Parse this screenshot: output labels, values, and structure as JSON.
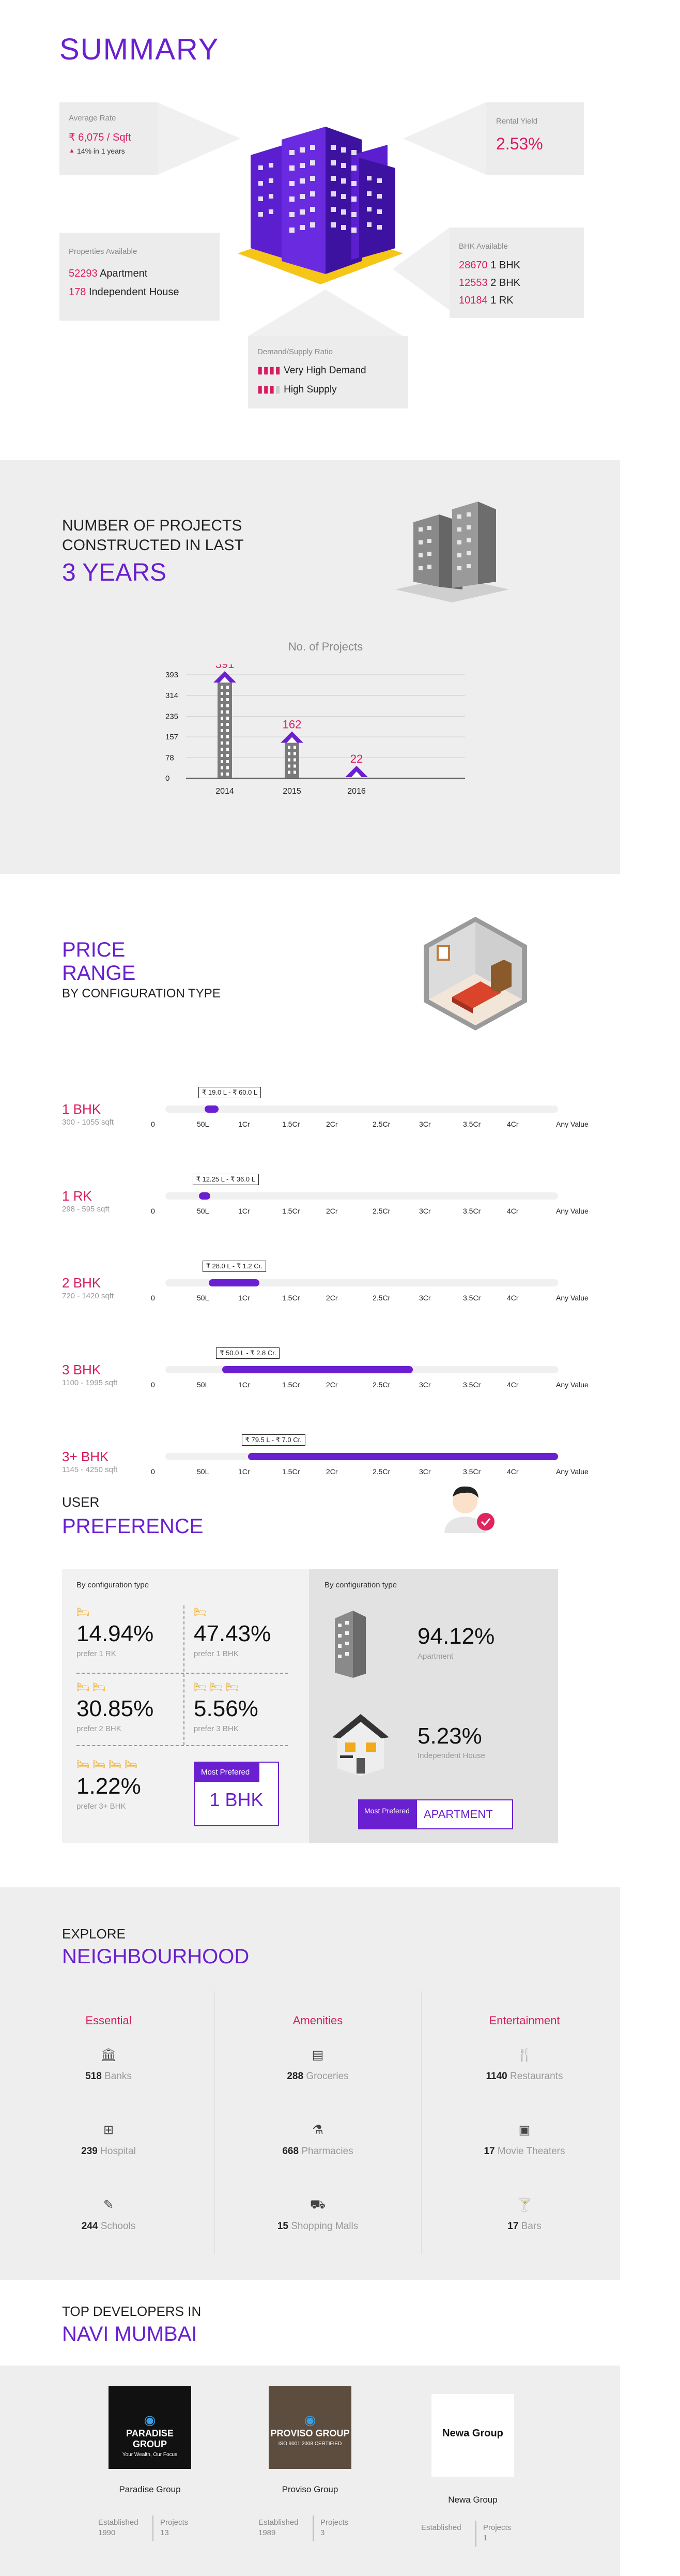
{
  "summary": {
    "title": "SUMMARY",
    "average_rate": {
      "label": "Average Rate",
      "value": "₹ 6,075 / Sqft",
      "change": "14% in 1 years"
    },
    "rental_yield": {
      "label": "Rental Yield",
      "value": "2.53%"
    },
    "properties": {
      "label": "Properties Available",
      "items": [
        {
          "count": "52293",
          "type": "Apartment"
        },
        {
          "count": "178",
          "type": "Independent House"
        }
      ]
    },
    "bhk": {
      "label": "BHK Available",
      "items": [
        {
          "count": "28670",
          "type": "1 BHK"
        },
        {
          "count": "12553",
          "type": "2 BHK"
        },
        {
          "count": "10184",
          "type": "1 RK"
        }
      ]
    },
    "demand": {
      "label": "Demand/Supply Ratio",
      "items": [
        "Very High Demand",
        "High Supply"
      ]
    }
  },
  "projects": {
    "line1": "NUMBER OF PROJECTS",
    "line2": "CONSTRUCTED IN LAST",
    "highlight": "3 YEARS"
  },
  "chart_data": {
    "type": "bar",
    "title": "No. of Projects",
    "categories": [
      "2014",
      "2015",
      "2016"
    ],
    "values": [
      391,
      162,
      22
    ],
    "yticks": [
      "393",
      "314",
      "235",
      "157",
      "78",
      "0"
    ],
    "ylim": [
      0,
      393
    ],
    "grid": true
  },
  "price": {
    "title1": "PRICE",
    "title2": "RANGE",
    "subtitle": "BY CONFIGURATION TYPE",
    "scale": [
      "0",
      "50L",
      "1Cr",
      "1.5Cr",
      "2Cr",
      "2.5Cr",
      "3Cr",
      "3.5Cr",
      "4Cr",
      "Any Value"
    ],
    "rows": [
      {
        "name": "1 BHK",
        "area": "300 - 1055 sqft",
        "range": "₹ 19.0 L - ₹ 60.0 L",
        "start": 0.1,
        "end": 0.135
      },
      {
        "name": "1 RK",
        "area": "298 - 595 sqft",
        "range": "₹ 12.25 L - ₹ 36.0 L",
        "start": 0.085,
        "end": 0.115
      },
      {
        "name": "2 BHK",
        "area": "720 - 1420 sqft",
        "range": "₹ 28.0 L - ₹ 1.2 Cr.",
        "start": 0.11,
        "end": 0.24
      },
      {
        "name": "3 BHK",
        "area": "1100 - 1995 sqft",
        "range": "₹ 50.0 L - ₹ 2.8 Cr.",
        "start": 0.145,
        "end": 0.63
      },
      {
        "name": "3+ BHK",
        "area": "1145 - 4250 sqft",
        "range": "₹ 79.5 L - ₹ 7.0 Cr.",
        "start": 0.21,
        "end": 1.0
      }
    ]
  },
  "preference": {
    "title1": "USER",
    "title2": "PREFERENCE",
    "left_label": "By configuration type",
    "right_label": "By configuration type",
    "config": [
      {
        "pct": "14.94%",
        "sub": "prefer 1 RK"
      },
      {
        "pct": "47.43%",
        "sub": "prefer 1 BHK"
      },
      {
        "pct": "30.85%",
        "sub": "prefer 2 BHK"
      },
      {
        "pct": "5.56%",
        "sub": "prefer 3 BHK"
      },
      {
        "pct": "1.22%",
        "sub": "prefer 3+ BHK"
      }
    ],
    "most_label": "Most Prefered",
    "most_value": "1 BHK",
    "types": [
      {
        "pct": "94.12%",
        "sub": "Apartment"
      },
      {
        "pct": "5.23%",
        "sub": "Independent House"
      }
    ],
    "most_label2": "Most Prefered",
    "most_value2": "APARTMENT"
  },
  "neighbourhood": {
    "title1": "EXPLORE",
    "title2": "NEIGHBOURHOOD",
    "columns": [
      {
        "head": "Essential",
        "items": [
          {
            "n": "518",
            "l": "Banks",
            "icon": "bank-icon"
          },
          {
            "n": "239",
            "l": "Hospital",
            "icon": "hospital-icon"
          },
          {
            "n": "244",
            "l": "Schools",
            "icon": "school-icon"
          }
        ]
      },
      {
        "head": "Amenities",
        "items": [
          {
            "n": "288",
            "l": "Groceries",
            "icon": "grocery-icon"
          },
          {
            "n": "668",
            "l": "Pharmacies",
            "icon": "pharmacy-icon"
          },
          {
            "n": "15",
            "l": "Shopping Malls",
            "icon": "cart-icon"
          }
        ]
      },
      {
        "head": "Entertainment",
        "items": [
          {
            "n": "1140",
            "l": "Restaurants",
            "icon": "restaurant-icon"
          },
          {
            "n": "17",
            "l": "Movie Theaters",
            "icon": "theater-icon"
          },
          {
            "n": "17",
            "l": "Bars",
            "icon": "bar-icon"
          }
        ]
      }
    ]
  },
  "developers": {
    "title1": "TOP DEVELOPERS IN",
    "title2": "NAVI MUMBAI",
    "items": [
      {
        "logo": "PARADISE GROUP",
        "tag": "Your Wealth, Our Focus",
        "name": "Paradise Group",
        "est_label": "Established",
        "est": "1990",
        "proj_label": "Projects",
        "proj": "13"
      },
      {
        "logo": "PROVISO GROUP",
        "tag": "ISO 9001:2008 CERTIFIED",
        "name": "Proviso Group",
        "est_label": "Established",
        "est": "1989",
        "proj_label": "Projects",
        "proj": "3"
      },
      {
        "logo": "Newa Group",
        "tag": "",
        "name": "Newa Group",
        "est_label": "Established",
        "est": "",
        "proj_label": "Projects",
        "proj": "1"
      }
    ]
  }
}
